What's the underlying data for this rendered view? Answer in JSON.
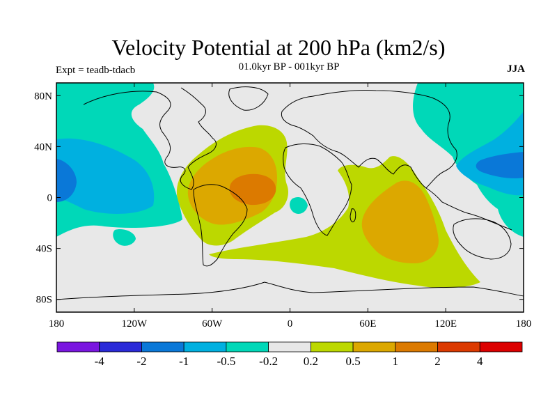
{
  "title": "Velocity Potential at 200 hPa (km2/s)",
  "subtitle": "01.0kyr BP - 001kyr BP",
  "left_label": "Expt = teadb-tdacb",
  "right_label": "JJA",
  "x_axis": {
    "range": [
      -180,
      180
    ],
    "ticks": [
      {
        "value": -180,
        "label": "180"
      },
      {
        "value": -120,
        "label": "120W"
      },
      {
        "value": -60,
        "label": "60W"
      },
      {
        "value": 0,
        "label": "0"
      },
      {
        "value": 60,
        "label": "60E"
      },
      {
        "value": 120,
        "label": "120E"
      },
      {
        "value": 180,
        "label": "180"
      }
    ]
  },
  "y_axis": {
    "range": [
      -90,
      90
    ],
    "ticks": [
      {
        "value": 80,
        "label": "80N"
      },
      {
        "value": 40,
        "label": "40N"
      },
      {
        "value": 0,
        "label": "0"
      },
      {
        "value": -40,
        "label": "40S"
      },
      {
        "value": -80,
        "label": "80S"
      }
    ]
  },
  "colorbar": {
    "colors": [
      "#7a16e0",
      "#2a2ad8",
      "#0a78d8",
      "#00b0e0",
      "#00d8b8",
      "#e8e8e8",
      "#bcd800",
      "#dca800",
      "#dc7a00",
      "#dc3a00",
      "#dc0000"
    ],
    "labels": [
      "-4",
      "-2",
      "-1",
      "-0.5",
      "-0.2",
      "0.2",
      "0.5",
      "1",
      "2",
      "4"
    ]
  },
  "colors": {
    "neutral": "#e8e8e8",
    "neg_02": "#00d8b8",
    "neg_05": "#00b0e0",
    "neg_1": "#0a78d8",
    "pos_02": "#bcd800",
    "pos_05": "#dca800",
    "pos_1": "#dc7a00"
  }
}
